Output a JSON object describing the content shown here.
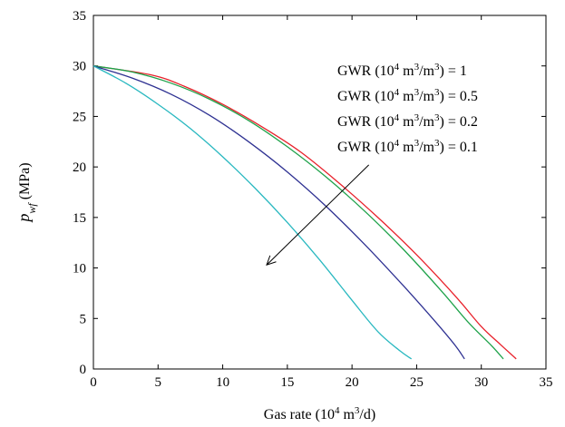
{
  "chart_data": {
    "type": "line",
    "xlabel": {
      "prefix": "Gas rate (10",
      "sup": "4",
      "mid": " m",
      "sup2": "3",
      "suffix": "/d)"
    },
    "ylabel": {
      "main": "p",
      "sub": "wf",
      "suffix": " (MPa)"
    },
    "xlim": [
      0,
      35
    ],
    "ylim": [
      0,
      35
    ],
    "xticks": [
      0,
      5,
      10,
      15,
      20,
      25,
      30,
      35
    ],
    "yticks": [
      0,
      5,
      10,
      15,
      20,
      25,
      30,
      35
    ],
    "legend_placement": "top-right",
    "series": [
      {
        "name": {
          "prefix": "GWR (10",
          "sup": "4",
          "m1": " m",
          "sup2": "3",
          "m2": "/m",
          "sup3": "3",
          "suffix": ") = 1"
        },
        "color": "#e8202a",
        "x": [
          0,
          4.5,
          7,
          10,
          13,
          16,
          19,
          22,
          25,
          28,
          30,
          31.5,
          32.7
        ],
        "y": [
          30,
          29.1,
          28,
          26.2,
          24,
          21.5,
          18.4,
          15,
          11.3,
          7.2,
          4.2,
          2.4,
          1
        ]
      },
      {
        "name": {
          "prefix": "GWR (10",
          "sup": "4",
          "m1": " m",
          "sup2": "3",
          "m2": "/m",
          "sup3": "3",
          "suffix": ") = 0.5"
        },
        "color": "#1ea24a",
        "x": [
          0,
          3,
          6,
          9,
          12,
          15,
          18,
          21,
          24,
          27,
          29,
          30.8,
          31.7
        ],
        "y": [
          30,
          29.4,
          28.3,
          26.7,
          24.6,
          22,
          19,
          15.6,
          11.8,
          7.6,
          4.6,
          2.3,
          1
        ]
      },
      {
        "name": {
          "prefix": "GWR (10",
          "sup": "4",
          "m1": " m",
          "sup2": "3",
          "m2": "/m",
          "sup3": "3",
          "suffix": ") = 0.2"
        },
        "color": "#2e3192",
        "x": [
          0,
          3,
          6,
          9,
          12,
          15,
          18,
          21,
          24,
          26.5,
          28,
          28.7
        ],
        "y": [
          30,
          28.8,
          27.2,
          25.1,
          22.5,
          19.5,
          16.1,
          12.3,
          8.2,
          4.6,
          2.3,
          1
        ]
      },
      {
        "name": {
          "prefix": "GWR (10",
          "sup": "4",
          "m1": " m",
          "sup2": "3",
          "m2": "/m",
          "sup3": "3",
          "suffix": ") = 0.1"
        },
        "color": "#29b8c0",
        "x": [
          0,
          2.5,
          5,
          7.5,
          10,
          12.5,
          15,
          17.5,
          20,
          22,
          23.7,
          24.6
        ],
        "y": [
          30,
          28.3,
          26.2,
          23.8,
          21,
          17.9,
          14.5,
          10.8,
          6.8,
          3.7,
          1.8,
          1
        ]
      }
    ],
    "arrow": {
      "x1": 21.3,
      "y1": 20.2,
      "x2": 13.4,
      "y2": 10.3
    }
  }
}
